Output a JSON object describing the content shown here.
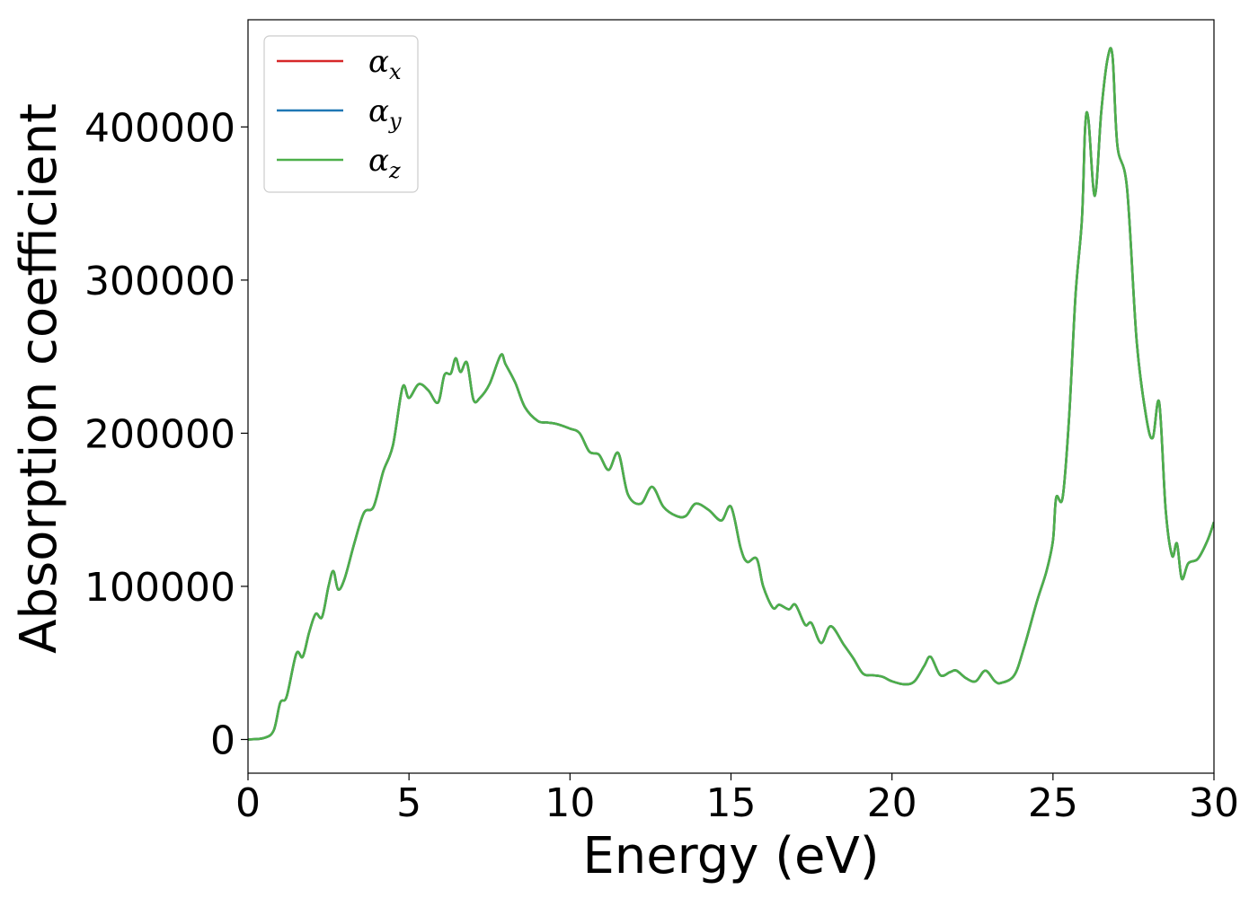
{
  "chart_data": {
    "type": "line",
    "xlabel": "Energy (eV)",
    "ylabel": "Absorption coefficient",
    "xlim": [
      0,
      30
    ],
    "ylim": [
      -22000,
      470000
    ],
    "xticks": [
      0,
      5,
      10,
      15,
      20,
      25,
      30
    ],
    "xtick_labels": [
      "0",
      "5",
      "10",
      "15",
      "20",
      "25",
      "30"
    ],
    "yticks": [
      0,
      100000,
      200000,
      300000,
      400000
    ],
    "ytick_labels": [
      "0",
      "100000",
      "200000",
      "300000",
      "400000"
    ],
    "grid": false,
    "legend_position": "top-left",
    "x": [
      0,
      0.5,
      0.8,
      1.0,
      1.2,
      1.5,
      1.7,
      1.9,
      2.1,
      2.3,
      2.5,
      2.65,
      2.8,
      3.0,
      3.3,
      3.6,
      3.9,
      4.2,
      4.5,
      4.8,
      5.0,
      5.3,
      5.6,
      5.9,
      6.1,
      6.3,
      6.45,
      6.6,
      6.8,
      7.0,
      7.2,
      7.5,
      7.85,
      8.0,
      8.3,
      8.6,
      9.0,
      9.3,
      9.6,
      10.0,
      10.3,
      10.6,
      10.9,
      11.2,
      11.5,
      11.8,
      12.2,
      12.55,
      12.9,
      13.3,
      13.6,
      13.9,
      14.3,
      14.7,
      15.0,
      15.3,
      15.5,
      15.8,
      16.0,
      16.3,
      16.5,
      16.8,
      17.0,
      17.3,
      17.5,
      17.8,
      18.1,
      18.5,
      18.8,
      19.1,
      19.4,
      19.7,
      20.0,
      20.4,
      20.7,
      21.0,
      21.2,
      21.5,
      21.8,
      22.0,
      22.3,
      22.6,
      22.9,
      23.2,
      23.4,
      23.8,
      24.1,
      24.5,
      24.8,
      25.0,
      25.1,
      25.3,
      25.5,
      25.7,
      25.9,
      26.0,
      26.1,
      26.3,
      26.5,
      26.7,
      26.85,
      27.0,
      27.3,
      27.6,
      27.9,
      28.1,
      28.3,
      28.5,
      28.7,
      28.85,
      29.0,
      29.2,
      29.5,
      29.8,
      30.0
    ],
    "series": [
      {
        "name": "α_x",
        "color": "#d62728",
        "values": [
          0,
          1000,
          6000,
          24000,
          28000,
          56000,
          54000,
          70000,
          82000,
          80000,
          100000,
          110000,
          98000,
          105000,
          128000,
          148000,
          152000,
          175000,
          192000,
          230000,
          223000,
          232000,
          228000,
          220000,
          238000,
          239000,
          249000,
          240000,
          246000,
          222000,
          223000,
          232000,
          251000,
          245000,
          233000,
          217000,
          208000,
          207000,
          206000,
          203000,
          200000,
          188000,
          186000,
          176000,
          187000,
          160000,
          154000,
          165000,
          152000,
          146000,
          146000,
          154000,
          150000,
          143000,
          152000,
          125000,
          116000,
          118000,
          100000,
          86000,
          88000,
          85000,
          88000,
          75000,
          76000,
          63000,
          74000,
          62000,
          53000,
          43000,
          42000,
          41000,
          38000,
          36000,
          38000,
          48000,
          54000,
          42000,
          44000,
          45000,
          40000,
          38000,
          45000,
          38000,
          37000,
          42000,
          60000,
          90000,
          110000,
          130000,
          158000,
          158000,
          210000,
          290000,
          340000,
          400000,
          405000,
          355000,
          410000,
          445000,
          446000,
          388000,
          360000,
          260000,
          210000,
          197000,
          220000,
          150000,
          120000,
          128000,
          105000,
          115000,
          118000,
          130000,
          142000
        ]
      },
      {
        "name": "α_y",
        "color": "#1f77b4",
        "values": [
          0,
          1000,
          6000,
          24000,
          28000,
          56000,
          54000,
          70000,
          82000,
          80000,
          100000,
          110000,
          98000,
          105000,
          128000,
          148000,
          152000,
          175000,
          192000,
          230000,
          223000,
          232000,
          228000,
          220000,
          238000,
          239000,
          249000,
          240000,
          246000,
          222000,
          223000,
          232000,
          251000,
          245000,
          233000,
          217000,
          208000,
          207000,
          206000,
          203000,
          200000,
          188000,
          186000,
          176000,
          187000,
          160000,
          154000,
          165000,
          152000,
          146000,
          146000,
          154000,
          150000,
          143000,
          152000,
          125000,
          116000,
          118000,
          100000,
          86000,
          88000,
          85000,
          88000,
          75000,
          76000,
          63000,
          74000,
          62000,
          53000,
          43000,
          42000,
          41000,
          38000,
          36000,
          38000,
          48000,
          54000,
          42000,
          44000,
          45000,
          40000,
          38000,
          45000,
          38000,
          37000,
          42000,
          60000,
          90000,
          110000,
          130000,
          158000,
          158000,
          210000,
          290000,
          340000,
          400000,
          405000,
          355000,
          410000,
          445000,
          446000,
          388000,
          360000,
          260000,
          210000,
          197000,
          220000,
          150000,
          120000,
          128000,
          105000,
          115000,
          118000,
          130000,
          142000
        ]
      },
      {
        "name": "α_z",
        "color": "#4daf4a",
        "values": [
          0,
          1000,
          6000,
          24000,
          28000,
          56000,
          54000,
          70000,
          82000,
          80000,
          100000,
          110000,
          98000,
          105000,
          128000,
          148000,
          152000,
          175000,
          192000,
          230000,
          223000,
          232000,
          228000,
          220000,
          238000,
          239000,
          249000,
          240000,
          246000,
          222000,
          223000,
          232000,
          251000,
          245000,
          233000,
          217000,
          208000,
          207000,
          206000,
          203000,
          200000,
          188000,
          186000,
          176000,
          187000,
          160000,
          154000,
          165000,
          152000,
          146000,
          146000,
          154000,
          150000,
          143000,
          152000,
          125000,
          116000,
          118000,
          100000,
          86000,
          88000,
          85000,
          88000,
          75000,
          76000,
          63000,
          74000,
          62000,
          53000,
          43000,
          42000,
          41000,
          38000,
          36000,
          38000,
          48000,
          54000,
          42000,
          44000,
          45000,
          40000,
          38000,
          45000,
          38000,
          37000,
          42000,
          60000,
          90000,
          110000,
          130000,
          158000,
          158000,
          210000,
          290000,
          340000,
          400000,
          405000,
          355000,
          410000,
          445000,
          446000,
          388000,
          360000,
          260000,
          210000,
          197000,
          220000,
          150000,
          120000,
          128000,
          105000,
          115000,
          118000,
          130000,
          142000
        ]
      }
    ],
    "legend": [
      {
        "symbol": "α",
        "sub": "x"
      },
      {
        "symbol": "α",
        "sub": "y"
      },
      {
        "symbol": "α",
        "sub": "z"
      }
    ]
  }
}
